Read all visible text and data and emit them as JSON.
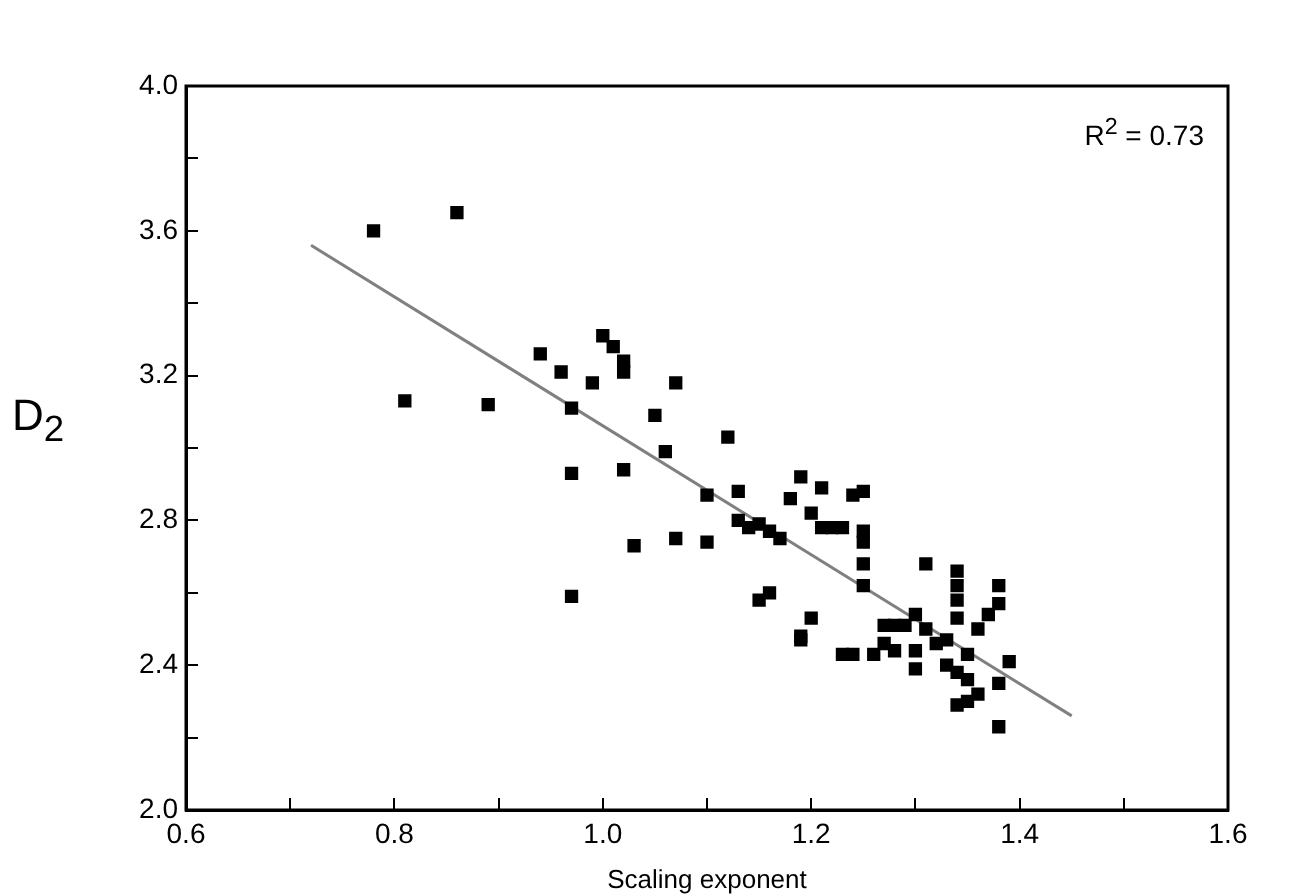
{
  "chart_data": {
    "type": "scatter",
    "xlabel": "Scaling exponent",
    "ylabel": "D$_{2}$",
    "annotations": [
      "R$^{2}$ = 0.73"
    ],
    "xlim": [
      0.6,
      1.6
    ],
    "xticks": [
      0.6,
      {
        "value": 0.7,
        "label": null
      },
      0.8,
      {
        "value": 0.9,
        "label": null
      },
      {
        "value": 1,
        "label": "1.0"
      },
      {
        "value": 1.1,
        "label": null
      },
      1.2,
      {
        "value": 1.3,
        "label": null
      },
      1.4,
      {
        "value": 1.5,
        "label": null
      },
      1.6
    ],
    "ylim": [
      2.0,
      4.0
    ],
    "yticks": [
      {
        "value": 2,
        "label": "2.0"
      },
      {
        "value": 2.2,
        "label": null
      },
      2.4,
      {
        "value": 2.6,
        "label": null
      },
      2.8,
      {
        "value": 3.0,
        "label": null
      },
      3.2,
      {
        "value": 3.4,
        "label": null
      },
      3.6,
      {
        "value": 3.8,
        "label": null
      },
      {
        "value": 4,
        "label": "4.0"
      }
    ],
    "grid": false,
    "legend": false,
    "series": [
      {
        "marker": "square",
        "color": "#000000",
        "x": [
          0.78,
          0.81,
          0.86,
          0.89,
          0.94,
          0.96,
          0.97,
          0.97,
          0.97,
          0.99,
          1.0,
          1.01,
          1.02,
          1.02,
          1.02,
          1.03,
          1.05,
          1.06,
          1.07,
          1.07,
          1.1,
          1.1,
          1.12,
          1.13,
          1.13,
          1.14,
          1.15,
          1.15,
          1.16,
          1.16,
          1.17,
          1.18,
          1.19,
          1.19,
          1.19,
          1.2,
          1.2,
          1.21,
          1.21,
          1.22,
          1.23,
          1.23,
          1.24,
          1.24,
          1.25,
          1.25,
          1.25,
          1.25,
          1.25,
          1.26,
          1.27,
          1.27,
          1.28,
          1.28,
          1.29,
          1.3,
          1.3,
          1.3,
          1.31,
          1.31,
          1.32,
          1.33,
          1.33,
          1.34,
          1.34,
          1.34,
          1.34,
          1.34,
          1.34,
          1.35,
          1.35,
          1.35,
          1.36,
          1.36,
          1.37,
          1.38,
          1.38,
          1.38,
          1.38,
          1.39
        ],
        "values": [
          3.6,
          3.13,
          3.65,
          3.12,
          3.26,
          3.21,
          3.11,
          2.93,
          2.59,
          3.18,
          3.31,
          3.28,
          3.24,
          3.21,
          2.94,
          2.73,
          3.09,
          2.99,
          3.18,
          2.75,
          2.87,
          2.74,
          3.03,
          2.88,
          2.8,
          2.78,
          2.79,
          2.58,
          2.6,
          2.77,
          2.75,
          2.86,
          2.92,
          2.48,
          2.47,
          2.53,
          2.82,
          2.89,
          2.78,
          2.78,
          2.78,
          2.43,
          2.43,
          2.87,
          2.88,
          2.77,
          2.74,
          2.68,
          2.62,
          2.43,
          2.51,
          2.46,
          2.51,
          2.44,
          2.51,
          2.44,
          2.39,
          2.54,
          2.68,
          2.5,
          2.46,
          2.4,
          2.47,
          2.58,
          2.62,
          2.66,
          2.53,
          2.38,
          2.29,
          2.3,
          2.43,
          2.36,
          2.32,
          2.5,
          2.54,
          2.62,
          2.57,
          2.35,
          2.23,
          2.41
        ]
      },
      {
        "type": "line",
        "marker": "none",
        "color": "#808080",
        "x": [
          0.72,
          1.45
        ],
        "values": [
          3.56,
          2.26
        ]
      }
    ]
  }
}
